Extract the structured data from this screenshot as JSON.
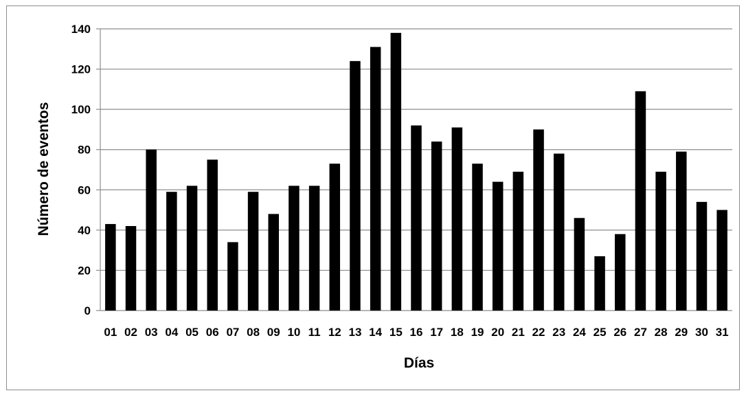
{
  "chart_data": {
    "type": "bar",
    "title": "",
    "xlabel": "Días",
    "ylabel": "Número de eventos",
    "ylim": [
      0,
      140
    ],
    "yticks": [
      0,
      20,
      40,
      60,
      80,
      100,
      120,
      140
    ],
    "ytick_labels": [
      "0",
      "20",
      "40",
      "60",
      "80",
      "100",
      "120",
      "140"
    ],
    "grid": "horizontal",
    "legend": "none",
    "bar_color": "#000000",
    "categories": [
      "01",
      "02",
      "03",
      "04",
      "05",
      "06",
      "07",
      "08",
      "09",
      "10",
      "11",
      "12",
      "13",
      "14",
      "15",
      "16",
      "17",
      "18",
      "19",
      "20",
      "21",
      "22",
      "23",
      "24",
      "25",
      "26",
      "27",
      "28",
      "29",
      "30",
      "31"
    ],
    "values": [
      43,
      42,
      80,
      59,
      62,
      75,
      34,
      59,
      48,
      62,
      62,
      73,
      124,
      131,
      138,
      92,
      84,
      91,
      73,
      64,
      69,
      90,
      78,
      46,
      27,
      38,
      109,
      69,
      79,
      54,
      50
    ]
  }
}
